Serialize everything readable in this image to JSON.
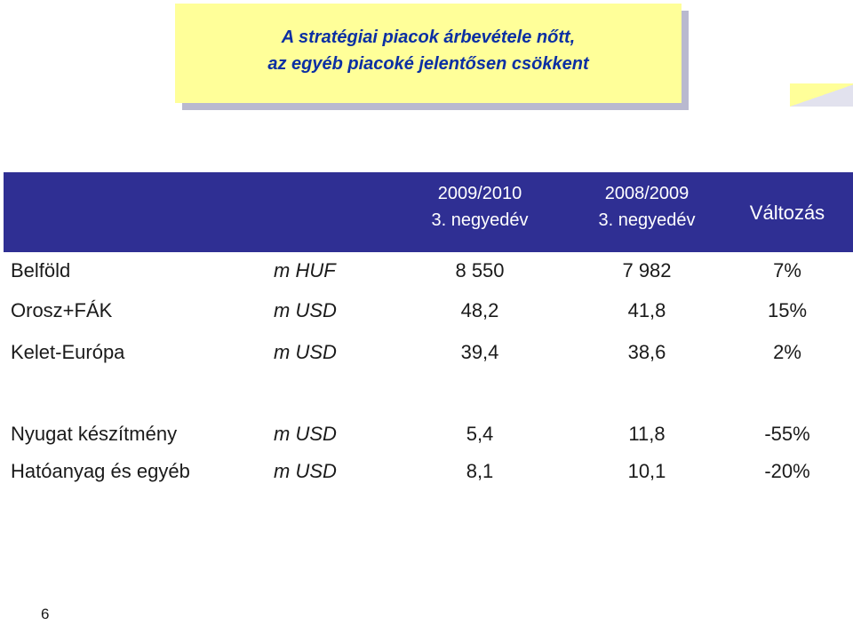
{
  "title": {
    "line1": "A stratégiai piacok árbevétele nőtt,",
    "line2": "az egyéb piacoké jelentősen csökkent"
  },
  "table": {
    "header": {
      "period1_year": "2009/2010",
      "period1_quarter": "3. negyedév",
      "period2_year": "2008/2009",
      "period2_quarter": "3. negyedév",
      "change": "Változás"
    },
    "rows": [
      {
        "label": "Belföld",
        "unit": "m HUF",
        "v1": "8 550",
        "v2": "7 982",
        "change": "7%"
      },
      {
        "label": "Orosz+FÁK",
        "unit": "m USD",
        "v1": "48,2",
        "v2": "41,8",
        "change": "15%"
      },
      {
        "label": "Kelet-Európa",
        "unit": "m USD",
        "v1": "39,4",
        "v2": "38,6",
        "change": "2%"
      },
      {
        "label": "Nyugat készítmény",
        "unit": "m USD",
        "v1": "5,4",
        "v2": "11,8",
        "change": "-55%"
      },
      {
        "label": "Hatóanyag és egyéb",
        "unit": "m USD",
        "v1": "8,1",
        "v2": "10,1",
        "change": "-20%"
      }
    ]
  },
  "colors": {
    "header_band": "#2f2f93",
    "title_background": "#ffff99",
    "title_text": "#0b2fa3"
  },
  "page_number": "6"
}
